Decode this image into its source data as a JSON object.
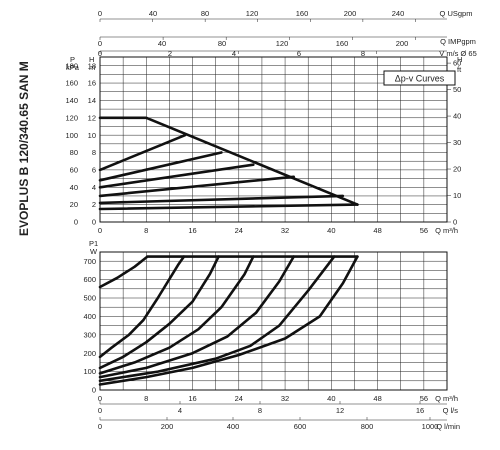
{
  "title": "EVOPLUS B 120/340.65 SAN M",
  "legend_label": "Δp-v Curves",
  "chart_data": [
    {
      "type": "line",
      "name": "head",
      "x_axis": {
        "label": "Q m³/h",
        "range": [
          0,
          60
        ],
        "ticks": [
          0,
          8,
          16,
          24,
          32,
          40,
          48,
          56
        ]
      },
      "left_axis_p": {
        "label": "P\nkPa",
        "range": [
          0,
          190
        ],
        "ticks": [
          0,
          20,
          40,
          60,
          80,
          100,
          120,
          140,
          160,
          180
        ]
      },
      "left_axis_h": {
        "label": "H\nm",
        "range": [
          0,
          19
        ],
        "ticks": [
          0,
          2,
          4,
          6,
          8,
          10,
          12,
          14,
          16,
          18
        ]
      },
      "right_axis_h": {
        "label": "H\nft",
        "range": [
          0,
          62.3
        ],
        "ticks": [
          0,
          10,
          20,
          30,
          40,
          50,
          60
        ]
      },
      "top_axes": [
        {
          "label": "Q USgpm",
          "range": [
            0,
            264
          ],
          "ticks": [
            0,
            40,
            80,
            120,
            160,
            200,
            240
          ]
        },
        {
          "label": "Q IMPgpm",
          "range": [
            0,
            220
          ],
          "ticks": [
            0,
            40,
            80,
            120,
            160,
            200
          ]
        },
        {
          "label": "V m/s Ø 65",
          "range": [
            0,
            5.02
          ],
          "ticks": [
            0,
            2,
            4,
            6,
            8
          ]
        }
      ],
      "series": [
        {
          "x": [
            0,
            8,
            44.5
          ],
          "y": [
            12,
            12,
            2
          ]
        },
        {
          "x": [
            0,
            14.7
          ],
          "y": [
            6,
            10
          ]
        },
        {
          "x": [
            0,
            21
          ],
          "y": [
            4.8,
            8
          ]
        },
        {
          "x": [
            0,
            26.5
          ],
          "y": [
            4,
            6.6
          ]
        },
        {
          "x": [
            0,
            33.5
          ],
          "y": [
            3,
            5.2
          ]
        },
        {
          "x": [
            0,
            42
          ],
          "y": [
            2.2,
            3
          ]
        },
        {
          "x": [
            0,
            44.5
          ],
          "y": [
            1.5,
            2
          ]
        }
      ]
    },
    {
      "type": "line",
      "name": "power",
      "x_axis": {
        "label": "Q m³/h",
        "range": [
          0,
          60
        ],
        "ticks": [
          0,
          8,
          16,
          24,
          32,
          40,
          48,
          56
        ]
      },
      "y_axis": {
        "label": "P1\nW",
        "range": [
          0,
          750
        ],
        "ticks": [
          0,
          100,
          200,
          300,
          400,
          500,
          600,
          700
        ]
      },
      "bottom_axes": [
        {
          "label": "Q l/s",
          "range": [
            0,
            16.67
          ],
          "ticks": [
            0,
            4,
            8,
            12,
            16
          ]
        },
        {
          "label": "Q l/min",
          "range": [
            0,
            1000
          ],
          "ticks": [
            0,
            200,
            400,
            600,
            800,
            1000
          ]
        }
      ],
      "series": [
        {
          "x": [
            0,
            3,
            6,
            8.2,
            44.5
          ],
          "y": [
            560,
            610,
            670,
            725,
            725
          ]
        },
        {
          "x": [
            0,
            2,
            5,
            7.5,
            10,
            13.5,
            14.5
          ],
          "y": [
            180,
            230,
            300,
            380,
            500,
            680,
            725
          ]
        },
        {
          "x": [
            0,
            4,
            8,
            12,
            16,
            19,
            20.5
          ],
          "y": [
            120,
            180,
            260,
            360,
            480,
            630,
            725
          ]
        },
        {
          "x": [
            0,
            6,
            12,
            17,
            21,
            25,
            26.5
          ],
          "y": [
            90,
            150,
            230,
            330,
            450,
            630,
            725
          ]
        },
        {
          "x": [
            0,
            8,
            16,
            22,
            27,
            31,
            33.5
          ],
          "y": [
            70,
            120,
            200,
            290,
            420,
            590,
            725
          ]
        },
        {
          "x": [
            0,
            10,
            20,
            26,
            31,
            36,
            40.5
          ],
          "y": [
            50,
            100,
            170,
            240,
            350,
            540,
            725
          ]
        },
        {
          "x": [
            0,
            8,
            16,
            24,
            32,
            38,
            42,
            44.5
          ],
          "y": [
            30,
            70,
            120,
            190,
            280,
            400,
            580,
            725
          ]
        }
      ]
    }
  ]
}
